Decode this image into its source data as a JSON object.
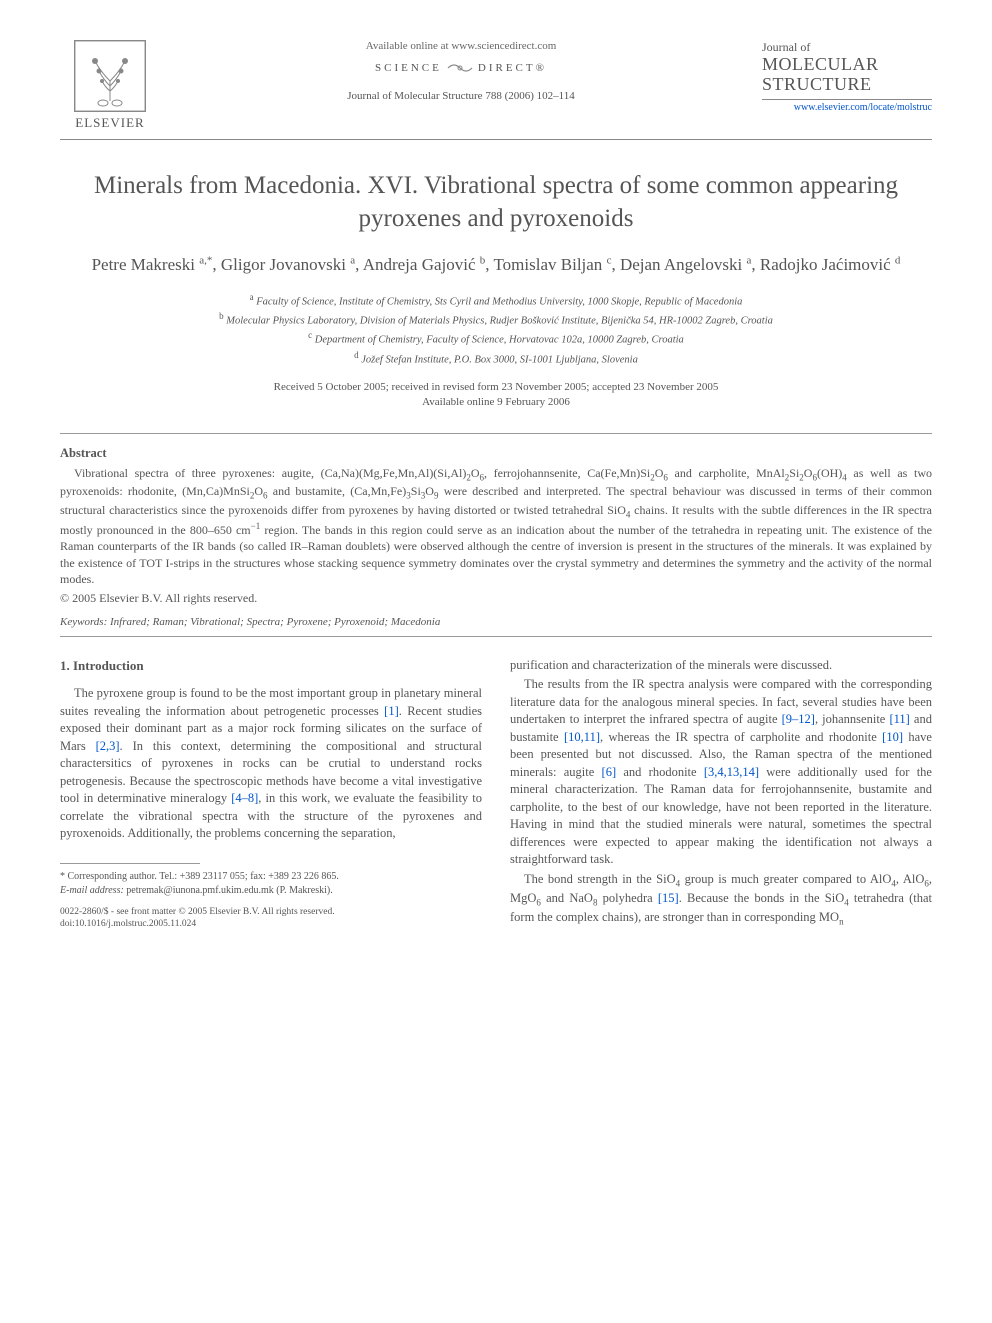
{
  "header": {
    "available_line": "Available online at www.sciencedirect.com",
    "sd_left": "SCIENCE",
    "sd_right": "DIRECT®",
    "citation": "Journal of Molecular Structure 788 (2006) 102–114",
    "elsevier": "ELSEVIER",
    "journal_small": "Journal of",
    "journal_big1": "MOLECULAR",
    "journal_big2": "STRUCTURE",
    "journal_link": "www.elsevier.com/locate/molstruc"
  },
  "title": "Minerals from Macedonia. XVI. Vibrational spectra of some common appearing pyroxenes and pyroxenoids",
  "authors_html": "Petre Makreski <sup>a,*</sup>, Gligor Jovanovski <sup>a</sup>, Andreja Gajović <sup>b</sup>, Tomislav Biljan <sup>c</sup>, Dejan Angelovski <sup>a</sup>, Radojko Jaćimović <sup>d</sup>",
  "affiliations": {
    "a": "Faculty of Science, Institute of Chemistry, Sts Cyril and Methodius University, 1000 Skopje, Republic of Macedonia",
    "b": "Molecular Physics Laboratory, Division of Materials Physics, Rudjer Bošković Institute, Bijenička 54, HR-10002 Zagreb, Croatia",
    "c": "Department of Chemistry, Faculty of Science, Horvatovac 102a, 10000 Zagreb, Croatia",
    "d": "Jožef Stefan Institute, P.O. Box 3000, SI-1001 Ljubljana, Slovenia"
  },
  "dates": {
    "line1": "Received 5 October 2005; received in revised form 23 November 2005; accepted 23 November 2005",
    "line2": "Available online 9 February 2006"
  },
  "abstract": {
    "heading": "Abstract",
    "body_html": "Vibrational spectra of three pyroxenes: augite, (Ca,Na)(Mg,Fe,Mn,Al)(Si,Al)<sub>2</sub>O<sub>6</sub>, ferrojohannsenite, Ca(Fe,Mn)Si<sub>2</sub>O<sub>6</sub> and carpholite, MnAl<sub>2</sub>Si<sub>2</sub>O<sub>6</sub>(OH)<sub>4</sub> as well as two pyroxenoids: rhodonite, (Mn,Ca)MnSi<sub>2</sub>O<sub>6</sub> and bustamite, (Ca,Mn,Fe)<sub>3</sub>Si<sub>3</sub>O<sub>9</sub> were described and interpreted. The spectral behaviour was discussed in terms of their common structural characteristics since the pyroxenoids differ from pyroxenes by having distorted or twisted tetrahedral SiO<sub>4</sub> chains. It results with the subtle differences in the IR spectra mostly pronounced in the 800–650 cm<sup>−1</sup> region. The bands in this region could serve as an indication about the number of the tetrahedra in repeating unit. The existence of the Raman counterparts of the IR bands (so called IR–Raman doublets) were observed although the centre of inversion is present in the structures of the minerals. It was explained by the existence of TOT I-strips in the structures whose stacking sequence symmetry dominates over the crystal symmetry and determines the symmetry and the activity of the normal modes.",
    "copyright": "© 2005 Elsevier B.V. All rights reserved."
  },
  "keywords": {
    "label": "Keywords:",
    "text": "Infrared; Raman; Vibrational; Spectra; Pyroxene; Pyroxenoid; Macedonia"
  },
  "intro": {
    "heading": "1. Introduction",
    "left_p1_html": "The pyroxene group is found to be the most important group in planetary mineral suites revealing the information about petrogenetic processes <span class=\"ref\">[1]</span>. Recent studies exposed their dominant part as a major rock forming silicates on the surface of Mars <span class=\"ref\">[2,3]</span>. In this context, determining the compositional and structural charactersitics of pyroxenes in rocks can be crutial to understand rocks petrogenesis. Because the spectroscopic methods have become a vital investigative tool in determinative mineralogy <span class=\"ref\">[4–8]</span>, in this work, we evaluate the feasibility to correlate the vibrational spectra with the structure of the pyroxenes and pyroxenoids. Additionally, the problems concerning the separation,",
    "right_p0": "purification and characterization of the minerals were discussed.",
    "right_p1_html": "The results from the IR spectra analysis were compared with the corresponding literature data for the analogous mineral species. In fact, several studies have been undertaken to interpret the infrared spectra of augite <span class=\"ref\">[9–12]</span>, johannsenite <span class=\"ref\">[11]</span> and bustamite <span class=\"ref\">[10,11]</span>, whereas the IR spectra of carpholite and rhodonite <span class=\"ref\">[10]</span> have been presented but not discussed. Also, the Raman spectra of the mentioned minerals: augite <span class=\"ref\">[6]</span> and rhodonite <span class=\"ref\">[3,4,13,14]</span> were additionally used for the mineral characterization. The Raman data for ferrojohannsenite, bustamite and carpholite, to the best of our knowledge, have not been reported in the literature. Having in mind that the studied minerals were natural, sometimes the spectral differences were expected to appear making the identification not always a straightforward task.",
    "right_p2_html": "The bond strength in the SiO<sub>4</sub> group is much greater compared to AlO<sub>4</sub>, AlO<sub>6</sub>, MgO<sub>6</sub> and NaO<sub>8</sub> polyhedra <span class=\"ref\">[15]</span>. Because the bonds in the SiO<sub>4</sub> tetrahedra (that form the complex chains), are stronger than in corresponding MO<sub>n</sub>"
  },
  "footnote": {
    "corr": "* Corresponding author. Tel.: +389 23117 055; fax: +389 23 226 865.",
    "email_label": "E-mail address:",
    "email": "petremak@iunona.pmf.ukim.edu.mk (P. Makreski)."
  },
  "footer": {
    "line1": "0022-2860/$ - see front matter © 2005 Elsevier B.V. All rights reserved.",
    "line2": "doi:10.1016/j.molstruc.2005.11.024"
  },
  "colors": {
    "text": "#555555",
    "link": "#0055cc",
    "rule": "#999999",
    "background": "#ffffff"
  }
}
